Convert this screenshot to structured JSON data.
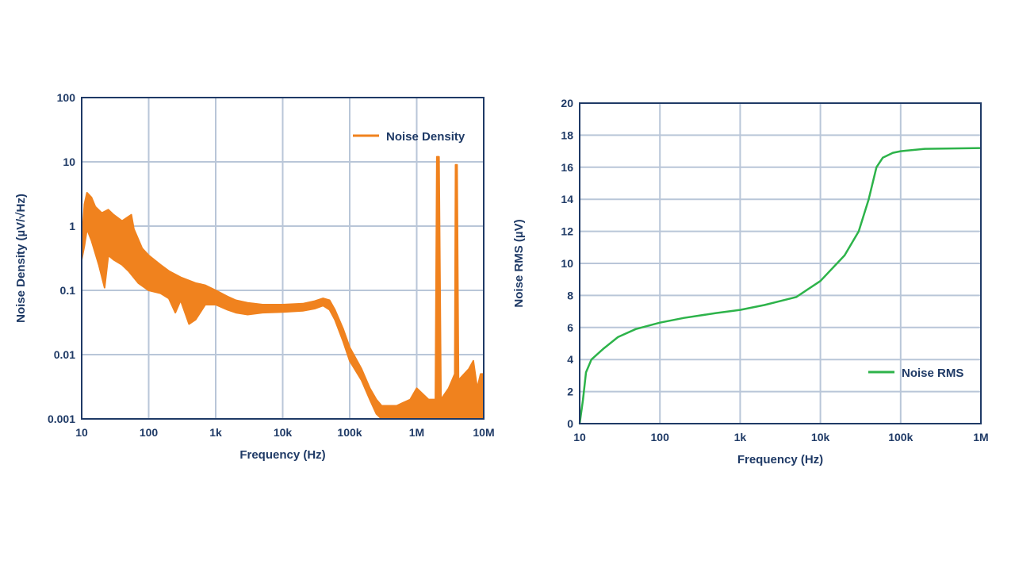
{
  "chart_data": [
    {
      "type": "line",
      "xscale": "log",
      "yscale": "log",
      "xlabel": "Frequency (Hz)",
      "ylabel": "Noise Density (µV/√Hz)",
      "xlim": [
        10,
        10000000
      ],
      "ylim": [
        0.001,
        100
      ],
      "xticks": [
        {
          "v": 10,
          "label": "10"
        },
        {
          "v": 100,
          "label": "100"
        },
        {
          "v": 1000,
          "label": "1k"
        },
        {
          "v": 10000,
          "label": "10k"
        },
        {
          "v": 100000,
          "label": "100k"
        },
        {
          "v": 1000000,
          "label": "1M"
        },
        {
          "v": 10000000,
          "label": "10M"
        }
      ],
      "yticks": [
        {
          "v": 0.001,
          "label": "0.001"
        },
        {
          "v": 0.01,
          "label": "0.01"
        },
        {
          "v": 0.1,
          "label": "0.1"
        },
        {
          "v": 1,
          "label": "1"
        },
        {
          "v": 10,
          "label": "10"
        },
        {
          "v": 100,
          "label": "100"
        }
      ],
      "legend_position": "top-right",
      "series": [
        {
          "name": "Noise Density",
          "color": "#f0821e",
          "upper": [
            [
              10,
              0.5
            ],
            [
              11,
              2.2
            ],
            [
              12,
              3.3
            ],
            [
              14,
              2.8
            ],
            [
              16,
              2.0
            ],
            [
              20,
              1.6
            ],
            [
              25,
              1.8
            ],
            [
              30,
              1.5
            ],
            [
              40,
              1.2
            ],
            [
              55,
              1.5
            ],
            [
              60,
              0.9
            ],
            [
              80,
              0.45
            ],
            [
              100,
              0.35
            ],
            [
              150,
              0.25
            ],
            [
              200,
              0.2
            ],
            [
              300,
              0.16
            ],
            [
              500,
              0.13
            ],
            [
              700,
              0.12
            ],
            [
              1000,
              0.1
            ],
            [
              1500,
              0.08
            ],
            [
              2000,
              0.07
            ],
            [
              3000,
              0.064
            ],
            [
              5000,
              0.06
            ],
            [
              10000,
              0.06
            ],
            [
              20000,
              0.062
            ],
            [
              30000,
              0.068
            ],
            [
              40000,
              0.075
            ],
            [
              50000,
              0.07
            ],
            [
              60000,
              0.05
            ],
            [
              80000,
              0.025
            ],
            [
              100000,
              0.013
            ],
            [
              150000,
              0.006
            ],
            [
              200000,
              0.003
            ],
            [
              250000,
              0.002
            ],
            [
              300000,
              0.0016
            ],
            [
              500000,
              0.0016
            ],
            [
              800000,
              0.002
            ],
            [
              1000000,
              0.003
            ],
            [
              1500000,
              0.002
            ],
            [
              1900000,
              0.002
            ],
            [
              2000000,
              12
            ],
            [
              2150000,
              12
            ],
            [
              2300000,
              0.002
            ],
            [
              3000000,
              0.003
            ],
            [
              3700000,
              0.005
            ],
            [
              3800000,
              9
            ],
            [
              4000000,
              9
            ],
            [
              4200000,
              0.004
            ],
            [
              6000000,
              0.006
            ],
            [
              7000000,
              0.008
            ],
            [
              8000000,
              0.003
            ],
            [
              9000000,
              0.005
            ],
            [
              10000000,
              0.005
            ]
          ],
          "lower": [
            [
              10,
              0.3
            ],
            [
              11,
              0.5
            ],
            [
              12,
              0.9
            ],
            [
              14,
              0.6
            ],
            [
              18,
              0.25
            ],
            [
              22,
              0.11
            ],
            [
              25,
              0.35
            ],
            [
              30,
              0.3
            ],
            [
              40,
              0.25
            ],
            [
              50,
              0.2
            ],
            [
              70,
              0.13
            ],
            [
              100,
              0.1
            ],
            [
              150,
              0.09
            ],
            [
              200,
              0.075
            ],
            [
              250,
              0.045
            ],
            [
              300,
              0.07
            ],
            [
              400,
              0.03
            ],
            [
              500,
              0.035
            ],
            [
              700,
              0.06
            ],
            [
              1000,
              0.06
            ],
            [
              1500,
              0.05
            ],
            [
              2000,
              0.045
            ],
            [
              3000,
              0.042
            ],
            [
              5000,
              0.045
            ],
            [
              10000,
              0.046
            ],
            [
              20000,
              0.048
            ],
            [
              30000,
              0.052
            ],
            [
              40000,
              0.058
            ],
            [
              50000,
              0.05
            ],
            [
              60000,
              0.035
            ],
            [
              80000,
              0.016
            ],
            [
              100000,
              0.008
            ],
            [
              150000,
              0.004
            ],
            [
              200000,
              0.002
            ],
            [
              250000,
              0.0012
            ],
            [
              300000,
              0.001
            ],
            [
              10000000,
              0.001
            ]
          ]
        }
      ]
    },
    {
      "type": "line",
      "xscale": "log",
      "xlabel": "Frequency (Hz)",
      "ylabel": "Noise RMS (µV)",
      "xlim": [
        10,
        1000000
      ],
      "ylim": [
        0,
        20
      ],
      "xticks": [
        {
          "v": 10,
          "label": "10"
        },
        {
          "v": 100,
          "label": "100"
        },
        {
          "v": 1000,
          "label": "1k"
        },
        {
          "v": 10000,
          "label": "10k"
        },
        {
          "v": 100000,
          "label": "100k"
        },
        {
          "v": 1000000,
          "label": "1M"
        }
      ],
      "yticks": [
        {
          "v": 0,
          "label": "0"
        },
        {
          "v": 2,
          "label": "2"
        },
        {
          "v": 4,
          "label": "4"
        },
        {
          "v": 6,
          "label": "6"
        },
        {
          "v": 8,
          "label": "8"
        },
        {
          "v": 10,
          "label": "10"
        },
        {
          "v": 12,
          "label": "12"
        },
        {
          "v": 14,
          "label": "14"
        },
        {
          "v": 16,
          "label": "16"
        },
        {
          "v": 18,
          "label": "18"
        },
        {
          "v": 20,
          "label": "20"
        }
      ],
      "legend_position": "bottom-right",
      "series": [
        {
          "name": "Noise RMS",
          "color": "#2db34a",
          "points": [
            [
              10,
              0
            ],
            [
              11,
              1.5
            ],
            [
              12,
              3.2
            ],
            [
              14,
              4.0
            ],
            [
              20,
              4.7
            ],
            [
              30,
              5.4
            ],
            [
              50,
              5.9
            ],
            [
              100,
              6.3
            ],
            [
              200,
              6.6
            ],
            [
              500,
              6.9
            ],
            [
              1000,
              7.1
            ],
            [
              2000,
              7.4
            ],
            [
              5000,
              7.9
            ],
            [
              10000,
              8.9
            ],
            [
              20000,
              10.5
            ],
            [
              30000,
              12.0
            ],
            [
              40000,
              14.0
            ],
            [
              50000,
              16.0
            ],
            [
              60000,
              16.6
            ],
            [
              80000,
              16.9
            ],
            [
              100000,
              17.0
            ],
            [
              200000,
              17.15
            ],
            [
              1000000,
              17.2
            ]
          ]
        }
      ]
    }
  ]
}
